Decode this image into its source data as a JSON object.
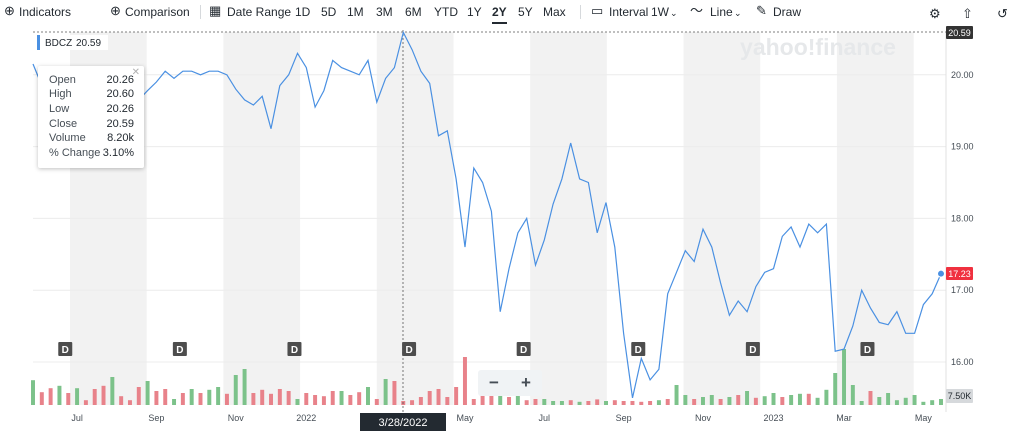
{
  "toolbar": {
    "indicators": "Indicators",
    "comparison": "Comparison",
    "date_range": "Date Range",
    "ranges": [
      "1D",
      "5D",
      "1M",
      "3M",
      "6M",
      "YTD",
      "1Y",
      "2Y",
      "5Y",
      "Max"
    ],
    "selected_range": "2Y",
    "interval_label": "Interval",
    "interval_value": "1W",
    "chart_style": "Line",
    "draw": "Draw"
  },
  "watermark": "yahoo!finance",
  "legend": {
    "symbol": "BDCZ",
    "value": "20.59",
    "color": "#4a90e2"
  },
  "tooltip": {
    "rows": [
      {
        "k": "Open",
        "v": "20.26"
      },
      {
        "k": "High",
        "v": "20.60"
      },
      {
        "k": "Low",
        "v": "20.26"
      },
      {
        "k": "Close",
        "v": "20.59"
      },
      {
        "k": "Volume",
        "v": "8.20k"
      },
      {
        "k": "% Change",
        "v": "3.10%"
      }
    ]
  },
  "crosshair": {
    "date_label": "3/28/2022",
    "price_label": "20.59"
  },
  "last_price_label": "17.23",
  "volume_max_label": "7.50K",
  "dividend_marker": "D",
  "zoom": {
    "minus": "−",
    "plus": "+"
  },
  "colors": {
    "line": "#4a90e2",
    "up": "#7cc28a",
    "down": "#e8828a",
    "last": "#f0313f",
    "shade": "#f2f2f2"
  },
  "chart_data": {
    "type": "line",
    "title": "",
    "xlabel": "",
    "ylabel": "",
    "ylim": [
      15.5,
      20.5
    ],
    "y_ticks": [
      "20.00",
      "19.00",
      "18.00",
      "17.00",
      "16.00"
    ],
    "x_ticks": [
      "Jul",
      "Sep",
      "Nov",
      "2022",
      "Mar",
      "May",
      "Jul",
      "Sep",
      "Nov",
      "2023",
      "Mar",
      "May"
    ],
    "x_tick_weeks": [
      5,
      14,
      23,
      31,
      40,
      49,
      58,
      67,
      76,
      84,
      92,
      101
    ],
    "dividend_weeks": [
      4,
      17,
      30,
      43,
      56,
      69,
      82,
      95
    ],
    "series": [
      {
        "values": [
          20.15,
          19.85,
          19.7,
          19.7,
          19.6,
          19.55,
          19.52,
          19.62,
          19.7,
          19.8,
          19.62,
          19.52,
          19.65,
          19.78,
          19.9,
          20.05,
          19.95,
          20.05,
          20.05,
          20.0,
          20.05,
          20.05,
          20.0,
          19.8,
          19.65,
          19.58,
          19.7,
          19.25,
          19.85,
          20.0,
          20.3,
          20.1,
          19.55,
          19.78,
          20.2,
          20.1,
          20.05,
          20.0,
          20.2,
          19.62,
          19.95,
          20.1,
          20.59,
          20.35,
          20.05,
          19.88,
          19.15,
          19.22,
          18.55,
          17.6,
          18.7,
          18.5,
          18.1,
          16.7,
          17.3,
          17.8,
          18.0,
          17.35,
          17.7,
          18.2,
          18.55,
          19.05,
          18.55,
          18.5,
          17.8,
          18.22,
          17.6,
          16.4,
          15.5,
          16.05,
          15.75,
          15.9,
          16.95,
          17.25,
          17.55,
          17.4,
          17.85,
          17.6,
          17.1,
          16.65,
          16.85,
          16.7,
          17.05,
          17.25,
          17.3,
          17.75,
          17.88,
          17.6,
          17.92,
          17.8,
          17.92,
          16.15,
          16.18,
          16.5,
          17.0,
          16.75,
          16.55,
          16.52,
          16.7,
          16.4,
          16.4,
          16.8,
          16.95,
          17.23
        ]
      }
    ],
    "volume": {
      "max_label": "7.50K",
      "bars": [
        [
          "up",
          0.62
        ],
        [
          "down",
          0.32
        ],
        [
          "down",
          0.42
        ],
        [
          "up",
          0.48
        ],
        [
          "down",
          0.3
        ],
        [
          "up",
          0.42
        ],
        [
          "down",
          0.12
        ],
        [
          "down",
          0.4
        ],
        [
          "down",
          0.48
        ],
        [
          "up",
          0.7
        ],
        [
          "down",
          0.22
        ],
        [
          "down",
          0.12
        ],
        [
          "down",
          0.45
        ],
        [
          "up",
          0.6
        ],
        [
          "down",
          0.35
        ],
        [
          "down",
          0.4
        ],
        [
          "up",
          0.15
        ],
        [
          "down",
          0.3
        ],
        [
          "up",
          0.4
        ],
        [
          "down",
          0.3
        ],
        [
          "up",
          0.38
        ],
        [
          "up",
          0.45
        ],
        [
          "down",
          0.28
        ],
        [
          "up",
          0.75
        ],
        [
          "up",
          0.9
        ],
        [
          "down",
          0.3
        ],
        [
          "down",
          0.38
        ],
        [
          "down",
          0.28
        ],
        [
          "down",
          0.4
        ],
        [
          "down",
          0.35
        ],
        [
          "up",
          0.15
        ],
        [
          "down",
          0.3
        ],
        [
          "down",
          0.25
        ],
        [
          "down",
          0.22
        ],
        [
          "down",
          0.35
        ],
        [
          "up",
          0.35
        ],
        [
          "down",
          0.25
        ],
        [
          "down",
          0.32
        ],
        [
          "up",
          0.45
        ],
        [
          "down",
          0.15
        ],
        [
          "up",
          0.65
        ],
        [
          "down",
          0.6
        ],
        [
          "down",
          0.1
        ],
        [
          "down",
          0.12
        ],
        [
          "down",
          0.2
        ],
        [
          "down",
          0.35
        ],
        [
          "down",
          0.4
        ],
        [
          "down",
          0.2
        ],
        [
          "down",
          0.45
        ],
        [
          "down",
          1.2
        ],
        [
          "down",
          0.15
        ],
        [
          "down",
          0.3
        ],
        [
          "down",
          0.42
        ],
        [
          "up",
          0.35
        ],
        [
          "down",
          0.2
        ],
        [
          "up",
          0.3
        ],
        [
          "down",
          0.12
        ],
        [
          "down",
          0.15
        ],
        [
          "up",
          0.15
        ],
        [
          "up",
          0.1
        ],
        [
          "up",
          0.1
        ],
        [
          "down",
          0.12
        ],
        [
          "up",
          0.08
        ],
        [
          "down",
          0.1
        ],
        [
          "down",
          0.14
        ],
        [
          "up",
          0.1
        ],
        [
          "down",
          0.12
        ],
        [
          "down",
          0.1
        ],
        [
          "down",
          0.1
        ],
        [
          "down",
          0.08
        ],
        [
          "down",
          0.1
        ],
        [
          "up",
          0.12
        ],
        [
          "down",
          0.15
        ],
        [
          "up",
          0.5
        ],
        [
          "up",
          0.25
        ],
        [
          "down",
          0.15
        ],
        [
          "up",
          0.2
        ],
        [
          "up",
          0.25
        ],
        [
          "down",
          0.15
        ],
        [
          "up",
          0.2
        ],
        [
          "down",
          0.25
        ],
        [
          "up",
          0.35
        ],
        [
          "down",
          0.18
        ],
        [
          "up",
          0.22
        ],
        [
          "up",
          0.3
        ],
        [
          "down",
          0.2
        ],
        [
          "up",
          0.25
        ],
        [
          "up",
          0.28
        ],
        [
          "down",
          0.28
        ],
        [
          "up",
          0.18
        ],
        [
          "up",
          0.38
        ],
        [
          "up",
          0.8
        ],
        [
          "up",
          1.4
        ],
        [
          "up",
          0.5
        ],
        [
          "up",
          0.1
        ],
        [
          "down",
          0.35
        ],
        [
          "up",
          0.2
        ],
        [
          "up",
          0.3
        ],
        [
          "up",
          0.12
        ],
        [
          "up",
          0.18
        ],
        [
          "up",
          0.25
        ],
        [
          "up",
          0.08
        ],
        [
          "up",
          0.12
        ],
        [
          "up",
          0.15
        ]
      ]
    }
  }
}
